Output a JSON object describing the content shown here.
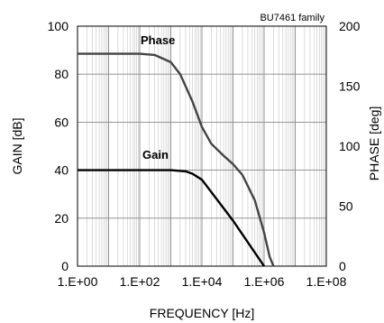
{
  "chart_data": {
    "type": "line",
    "annotation": "BU7461 family",
    "xlabel": "FREQUENCY [Hz]",
    "ylabel_left": "GAIN [dB]",
    "ylabel_right": "PHASE [deg]",
    "x_scale": "log",
    "xlim": [
      1,
      100000000
    ],
    "ylim_left": [
      0,
      100
    ],
    "ylim_right": [
      0,
      200
    ],
    "x_tick_labels": [
      "1.E+00",
      "1.E+02",
      "1.E+04",
      "1.E+06",
      "1.E+08"
    ],
    "y_left_tick_labels": [
      "0",
      "20",
      "40",
      "60",
      "80",
      "100"
    ],
    "y_right_tick_labels": [
      "0",
      "50",
      "100",
      "150",
      "200"
    ],
    "grid": true,
    "series": [
      {
        "name": "Phase",
        "axis": "right",
        "color": "#444444",
        "x": [
          1,
          10,
          100,
          300,
          1000,
          2000,
          5000,
          10000,
          20000,
          50000,
          100000,
          200000,
          500000,
          1000000,
          1500000,
          2000000
        ],
        "y": [
          177,
          177,
          177,
          176,
          170,
          160,
          137,
          116,
          102,
          92,
          85,
          76,
          55,
          28,
          8,
          0
        ]
      },
      {
        "name": "Gain",
        "axis": "left",
        "color": "#000000",
        "x": [
          1,
          10,
          100,
          1000,
          3000,
          5000,
          10000,
          100000,
          1000000
        ],
        "y": [
          40,
          40,
          40,
          40,
          39.5,
          38.5,
          36,
          19,
          0
        ]
      }
    ]
  }
}
